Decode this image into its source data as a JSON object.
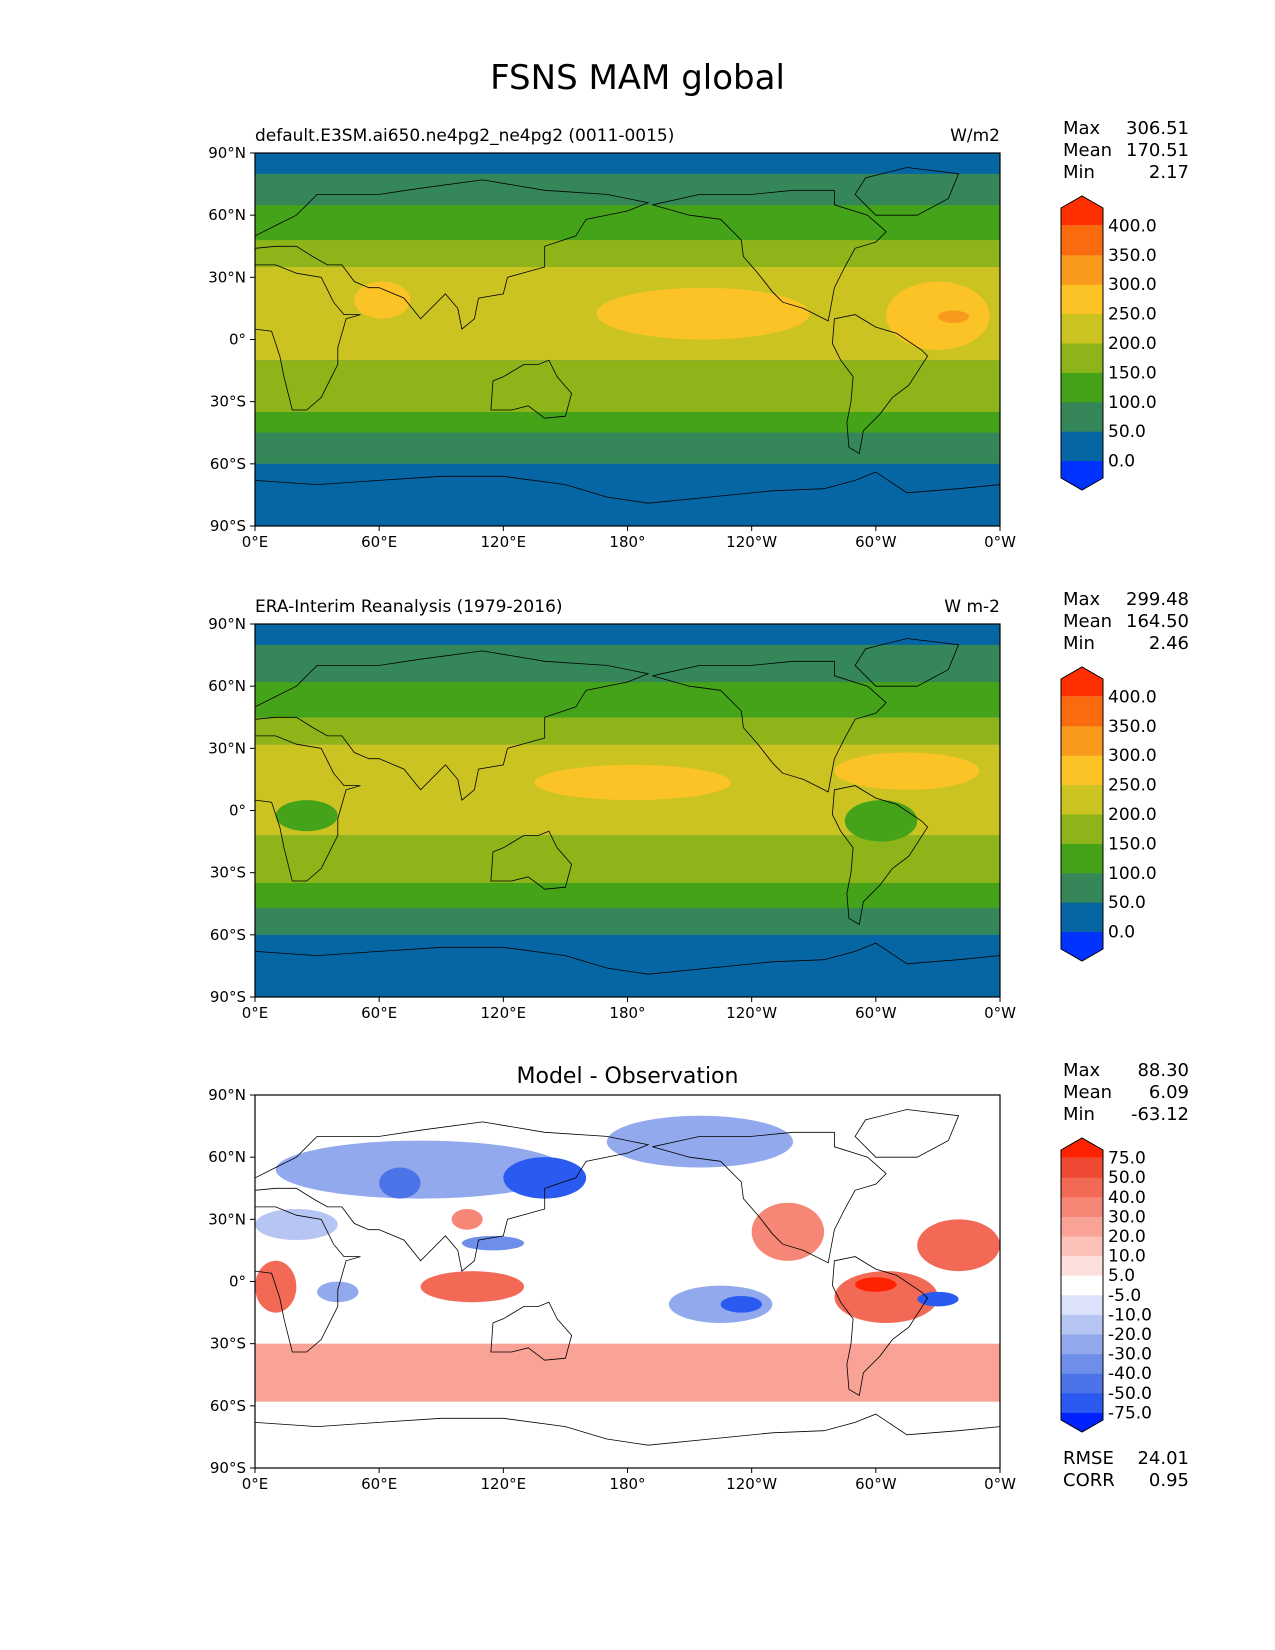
{
  "figure": {
    "title": "FSNS MAM global"
  },
  "chart_data": [
    {
      "type": "heatmap",
      "panel": "test",
      "title_left": "default.E3SM.ai650.ne4pg2_ne4pg2 (0011-0015)",
      "title_right": "W/m2",
      "stats": [
        {
          "label": "Max",
          "value": "306.51"
        },
        {
          "label": "Mean",
          "value": "170.51"
        },
        {
          "label": "Min",
          "value": "2.17"
        }
      ],
      "colorbar_levels": [
        "0.0",
        "50.0",
        "100.0",
        "150.0",
        "200.0",
        "250.0",
        "300.0",
        "350.0",
        "400.0"
      ],
      "colorbar_colors": [
        "#0033ff",
        "#0566a3",
        "#35875a",
        "#44a318",
        "#8db519",
        "#cac322",
        "#fbc325",
        "#f99a1c",
        "#fa6a0f",
        "#ff2f00"
      ],
      "regions": [
        {
          "name": "north-polar-cap",
          "value": 25
        },
        {
          "name": "north-high-latitudes",
          "value": 80
        },
        {
          "name": "north-mid-latitudes",
          "value": 140
        },
        {
          "name": "subtropics",
          "value": 190
        },
        {
          "name": "tropical-belt",
          "value": 210
        },
        {
          "name": "southern-subtropics",
          "value": 170
        },
        {
          "name": "southern-ocean",
          "value": 90
        },
        {
          "name": "antarctica",
          "value": 30
        },
        {
          "name": "pacific-maximum",
          "value": 265
        },
        {
          "name": "atlantic-maximum",
          "value": 300
        }
      ],
      "xticks": [
        "0°E",
        "60°E",
        "120°E",
        "180°",
        "120°W",
        "60°W",
        "0°W"
      ],
      "yticks": [
        "90°N",
        "60°N",
        "30°N",
        "0°",
        "30°S",
        "60°S",
        "90°S"
      ],
      "xlim": [
        0,
        360
      ],
      "ylim": [
        -90,
        90
      ]
    },
    {
      "type": "heatmap",
      "panel": "reference",
      "title_left": "ERA-Interim Reanalysis (1979-2016)",
      "title_right": "W m-2",
      "stats": [
        {
          "label": "Max",
          "value": "299.48"
        },
        {
          "label": "Mean",
          "value": "164.50"
        },
        {
          "label": "Min",
          "value": "2.46"
        }
      ],
      "colorbar_levels": [
        "0.0",
        "50.0",
        "100.0",
        "150.0",
        "200.0",
        "250.0",
        "300.0",
        "350.0",
        "400.0"
      ],
      "colorbar_colors": [
        "#0033ff",
        "#0566a3",
        "#35875a",
        "#44a318",
        "#8db519",
        "#cac322",
        "#fbc325",
        "#f99a1c",
        "#fa6a0f",
        "#ff2f00"
      ],
      "regions": [
        {
          "name": "north-polar-cap",
          "value": 25
        },
        {
          "name": "north-high-latitudes",
          "value": 90
        },
        {
          "name": "north-mid-latitudes",
          "value": 150
        },
        {
          "name": "subtropics",
          "value": 210
        },
        {
          "name": "tropical-belt",
          "value": 200
        },
        {
          "name": "southern-subtropics",
          "value": 160
        },
        {
          "name": "southern-ocean",
          "value": 85
        },
        {
          "name": "antarctica",
          "value": 30
        },
        {
          "name": "pacific-maximum",
          "value": 255
        },
        {
          "name": "amazon-minimum",
          "value": 140
        }
      ],
      "xticks": [
        "0°E",
        "60°E",
        "120°E",
        "180°",
        "120°W",
        "60°W",
        "0°W"
      ],
      "yticks": [
        "90°N",
        "60°N",
        "30°N",
        "0°",
        "30°S",
        "60°S",
        "90°S"
      ],
      "xlim": [
        0,
        360
      ],
      "ylim": [
        -90,
        90
      ]
    },
    {
      "type": "heatmap",
      "panel": "difference",
      "title_center": "Model - Observation",
      "stats": [
        {
          "label": "Max",
          "value": "88.30"
        },
        {
          "label": "Mean",
          "value": "6.09"
        },
        {
          "label": "Min",
          "value": "-63.12"
        }
      ],
      "colorbar_levels": [
        "-75.0",
        "-50.0",
        "-40.0",
        "-30.0",
        "-20.0",
        "-10.0",
        "-5.0",
        "5.0",
        "10.0",
        "20.0",
        "30.0",
        "40.0",
        "50.0",
        "75.0"
      ],
      "colorbar_colors": [
        "#0022ff",
        "#2a5af0",
        "#4d73e8",
        "#6e8fe9",
        "#92a9ee",
        "#b7c5f3",
        "#dbe2f9",
        "#ffffff",
        "#fde0dc",
        "#fcc1b8",
        "#f9a296",
        "#f68676",
        "#f26a56",
        "#ee4a33",
        "#ff2200"
      ],
      "regions": [
        {
          "name": "arctic-ocean",
          "value": -20
        },
        {
          "name": "north-pacific",
          "value": -30
        },
        {
          "name": "central-asia",
          "value": -40
        },
        {
          "name": "eastern-tropical-pacific",
          "value": 30
        },
        {
          "name": "central-equatorial-pacific",
          "value": -45
        },
        {
          "name": "south-america-amazon",
          "value": 75
        },
        {
          "name": "tropical-atlantic",
          "value": 40
        },
        {
          "name": "africa-west-coast",
          "value": 50
        },
        {
          "name": "maritime-continent",
          "value": 40
        },
        {
          "name": "southern-ocean",
          "value": 20
        },
        {
          "name": "antarctica",
          "value": 0
        },
        {
          "name": "south-atlantic",
          "value": -40
        }
      ],
      "xticks": [
        "0°E",
        "60°E",
        "120°E",
        "180°",
        "120°W",
        "60°W",
        "0°W"
      ],
      "yticks": [
        "90°N",
        "60°N",
        "30°N",
        "0°",
        "30°S",
        "60°S",
        "90°S"
      ],
      "xlim": [
        0,
        360
      ],
      "ylim": [
        -90,
        90
      ],
      "metrics": [
        {
          "label": "RMSE",
          "value": "24.01"
        },
        {
          "label": "CORR",
          "value": "0.95"
        }
      ]
    }
  ]
}
